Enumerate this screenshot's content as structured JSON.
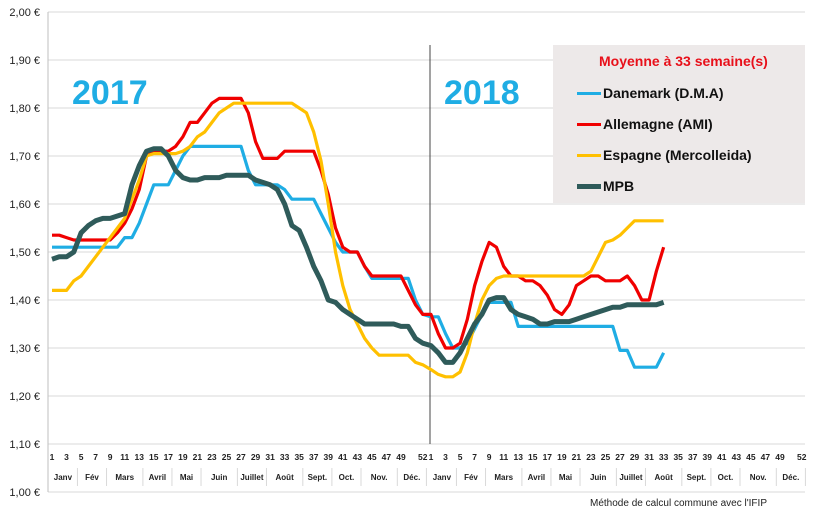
{
  "chart_data": {
    "type": "line",
    "title": "",
    "y_tick_labels": [
      "1,00 €",
      "1,10 €",
      "1,20 €",
      "1,30 €",
      "1,40 €",
      "1,50 €",
      "1,60 €",
      "1,70 €",
      "1,80 €",
      "1,90 €",
      "2,00 €"
    ],
    "ylim": [
      1.0,
      2.0
    ],
    "grid": true,
    "year_labels": [
      "2017",
      "2018"
    ],
    "week_tick_labels": [
      "1",
      "3",
      "5",
      "7",
      "9",
      "11",
      "13",
      "15",
      "17",
      "19",
      "21",
      "23",
      "25",
      "27",
      "29",
      "31",
      "33",
      "35",
      "37",
      "39",
      "41",
      "43",
      "45",
      "47",
      "49",
      "52"
    ],
    "months": [
      {
        "label": "Janv",
        "start": 1,
        "end": 4
      },
      {
        "label": "Fév",
        "start": 5,
        "end": 8
      },
      {
        "label": "Mars",
        "start": 9,
        "end": 13
      },
      {
        "label": "Avril",
        "start": 14,
        "end": 17
      },
      {
        "label": "Mai",
        "start": 18,
        "end": 21
      },
      {
        "label": "Juin",
        "start": 22,
        "end": 26
      },
      {
        "label": "Juillet",
        "start": 27,
        "end": 30
      },
      {
        "label": "Août",
        "start": 31,
        "end": 35
      },
      {
        "label": "Sept.",
        "start": 36,
        "end": 39
      },
      {
        "label": "Oct.",
        "start": 40,
        "end": 43
      },
      {
        "label": "Nov.",
        "start": 44,
        "end": 48
      },
      {
        "label": "Déc.",
        "start": 49,
        "end": 52
      }
    ],
    "legend_title": "Moyenne à  33 semaine(s)",
    "legend_position": "top-right",
    "series": [
      {
        "name": "Danemark (D.M.A)",
        "color": "#1FADE4",
        "y2017": [
          1.51,
          1.51,
          1.51,
          1.51,
          1.51,
          1.51,
          1.51,
          1.51,
          1.51,
          1.51,
          1.53,
          1.53,
          1.56,
          1.6,
          1.64,
          1.64,
          1.64,
          1.67,
          1.7,
          1.72,
          1.72,
          1.72,
          1.72,
          1.72,
          1.72,
          1.72,
          1.72,
          1.67,
          1.64,
          1.64,
          1.64,
          1.64,
          1.63,
          1.61,
          1.61,
          1.61,
          1.61,
          1.58,
          1.55,
          1.52,
          1.5,
          1.5,
          1.5,
          1.47,
          1.445,
          1.445,
          1.445,
          1.445,
          1.445,
          1.445,
          1.4,
          1.37
        ],
        "y2018": [
          1.365,
          1.365,
          1.33,
          1.3,
          1.3,
          1.31,
          1.34,
          1.37,
          1.395,
          1.395,
          1.395,
          1.395,
          1.345,
          1.345,
          1.345,
          1.345,
          1.345,
          1.345,
          1.345,
          1.345,
          1.345,
          1.345,
          1.345,
          1.345,
          1.345,
          1.345,
          1.295,
          1.295,
          1.26,
          1.26,
          1.26,
          1.26,
          1.29
        ]
      },
      {
        "name": "Allemagne (AMI)",
        "color": "#F00000",
        "y2017": [
          1.535,
          1.535,
          1.53,
          1.525,
          1.525,
          1.525,
          1.525,
          1.525,
          1.525,
          1.54,
          1.56,
          1.59,
          1.63,
          1.7,
          1.71,
          1.71,
          1.71,
          1.72,
          1.74,
          1.77,
          1.77,
          1.79,
          1.81,
          1.82,
          1.82,
          1.82,
          1.82,
          1.79,
          1.73,
          1.695,
          1.695,
          1.695,
          1.71,
          1.71,
          1.71,
          1.71,
          1.71,
          1.67,
          1.62,
          1.55,
          1.51,
          1.5,
          1.5,
          1.47,
          1.45,
          1.45,
          1.45,
          1.45,
          1.45,
          1.42,
          1.39,
          1.37
        ],
        "y2018": [
          1.37,
          1.33,
          1.3,
          1.3,
          1.31,
          1.36,
          1.43,
          1.48,
          1.52,
          1.51,
          1.47,
          1.45,
          1.45,
          1.44,
          1.44,
          1.43,
          1.41,
          1.38,
          1.37,
          1.39,
          1.43,
          1.44,
          1.45,
          1.45,
          1.44,
          1.44,
          1.44,
          1.45,
          1.43,
          1.4,
          1.4,
          1.46,
          1.51
        ]
      },
      {
        "name": "Espagne (Mercolleida)",
        "color": "#FFC000",
        "y2017": [
          1.42,
          1.42,
          1.42,
          1.44,
          1.45,
          1.47,
          1.49,
          1.51,
          1.53,
          1.55,
          1.57,
          1.61,
          1.65,
          1.7,
          1.705,
          1.705,
          1.705,
          1.705,
          1.71,
          1.72,
          1.74,
          1.75,
          1.77,
          1.79,
          1.8,
          1.81,
          1.81,
          1.81,
          1.81,
          1.81,
          1.81,
          1.81,
          1.81,
          1.81,
          1.8,
          1.79,
          1.75,
          1.69,
          1.6,
          1.5,
          1.43,
          1.38,
          1.35,
          1.32,
          1.3,
          1.285,
          1.285,
          1.285,
          1.285,
          1.285,
          1.27,
          1.265
        ],
        "y2018": [
          1.255,
          1.245,
          1.24,
          1.24,
          1.25,
          1.29,
          1.35,
          1.4,
          1.43,
          1.445,
          1.45,
          1.45,
          1.45,
          1.45,
          1.45,
          1.45,
          1.45,
          1.45,
          1.45,
          1.45,
          1.45,
          1.45,
          1.46,
          1.49,
          1.52,
          1.525,
          1.535,
          1.55,
          1.565,
          1.565,
          1.565,
          1.565,
          1.565
        ]
      },
      {
        "name": "MPB",
        "color": "#2F5B5A",
        "y2017": [
          1.485,
          1.49,
          1.49,
          1.5,
          1.54,
          1.555,
          1.565,
          1.57,
          1.57,
          1.575,
          1.58,
          1.64,
          1.68,
          1.71,
          1.715,
          1.715,
          1.7,
          1.67,
          1.655,
          1.65,
          1.65,
          1.655,
          1.655,
          1.655,
          1.66,
          1.66,
          1.66,
          1.66,
          1.65,
          1.645,
          1.64,
          1.63,
          1.6,
          1.555,
          1.545,
          1.51,
          1.47,
          1.44,
          1.4,
          1.395,
          1.38,
          1.37,
          1.36,
          1.35,
          1.35,
          1.35,
          1.35,
          1.35,
          1.345,
          1.345,
          1.32,
          1.31
        ],
        "y2018": [
          1.305,
          1.29,
          1.27,
          1.27,
          1.29,
          1.32,
          1.35,
          1.37,
          1.4,
          1.405,
          1.405,
          1.38,
          1.37,
          1.365,
          1.36,
          1.35,
          1.35,
          1.355,
          1.355,
          1.355,
          1.36,
          1.365,
          1.37,
          1.375,
          1.38,
          1.385,
          1.385,
          1.39,
          1.39,
          1.39,
          1.39,
          1.39,
          1.395
        ]
      }
    ],
    "footnote": "Méthode de calcul commune avec l'IFIP"
  }
}
